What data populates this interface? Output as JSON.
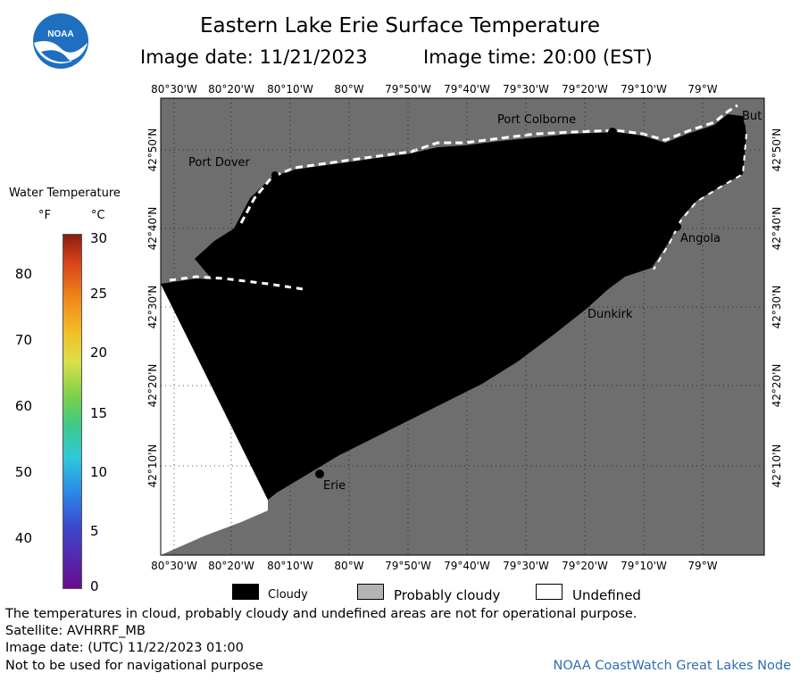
{
  "title": "Eastern Lake Erie Surface Temperature",
  "subtitle": {
    "image_date": "Image date: 11/21/2023",
    "image_time": "Image time: 20:00 (EST)"
  },
  "logo_text": "NOAA",
  "legend": {
    "title": "Water Temperature",
    "unit_f": "°F",
    "unit_c": "°C",
    "f_ticks": [
      "80",
      "70",
      "60",
      "50",
      "40"
    ],
    "c_ticks": [
      "30",
      "25",
      "20",
      "15",
      "10",
      "5",
      "0"
    ]
  },
  "map": {
    "lon_labels": [
      "80°30'W",
      "80°20'W",
      "80°10'W",
      "80°W",
      "79°50'W",
      "79°40'W",
      "79°30'W",
      "79°20'W",
      "79°10'W",
      "79°W"
    ],
    "lat_labels": [
      "42°50'N",
      "42°40'N",
      "42°30'N",
      "42°20'N",
      "42°10'N"
    ],
    "cities": [
      "Port Colborne",
      "But",
      "Port Dover",
      "Angola",
      "Dunkirk",
      "Erie"
    ],
    "colors": {
      "cloudy": "#000000",
      "probably_cloudy": "#6e6e6e",
      "undefined": "#ffffff"
    }
  },
  "map_key": {
    "cloudy": "Cloudy",
    "probably_cloudy": "Probably cloudy",
    "undefined": "Undefined"
  },
  "footer": {
    "disclaimer": "The temperatures in cloud, probably cloudy and undefined areas are not for operational purpose.",
    "satellite": "Satellite: AVHRRF_MB",
    "utc_date": "Image date: (UTC) 11/22/2023  01:00",
    "navigation": "Not to be used for navigational purpose",
    "credit": "NOAA CoastWatch Great Lakes Node"
  }
}
